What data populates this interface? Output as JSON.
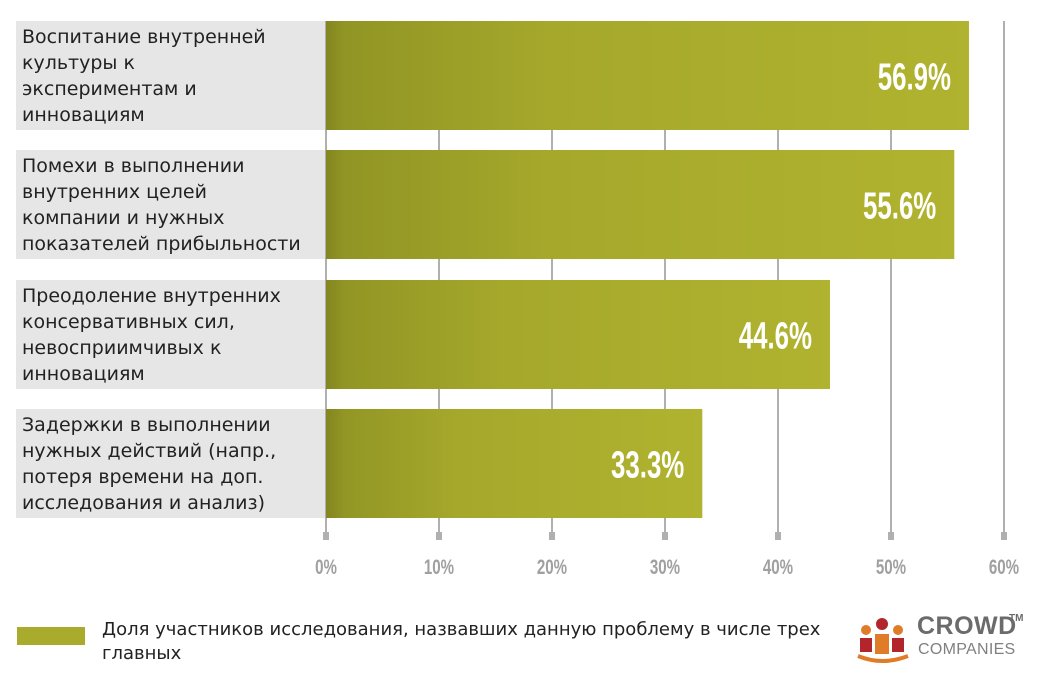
{
  "chart_data": {
    "type": "bar",
    "orientation": "horizontal",
    "categories": [
      "Воспитание внутренней\nкультуры к\nэкспериментам и\nинновациям",
      "Помехи в выполнении\nвнутренних целей\nкомпании и нужных\nпоказателей прибыльности",
      "Преодоление внутренних\nконсервативных сил,\nневосприимчивых к\nинновациям",
      "Задержки в выполнении\nнужных действий (напр.,\nпотеря времени на доп.\nисследования и анализ)"
    ],
    "values": [
      56.9,
      55.6,
      44.6,
      33.3
    ],
    "value_labels": [
      "56.9%",
      "55.6%",
      "44.6%",
      "33.3%"
    ],
    "xlim": [
      0,
      60
    ],
    "xticks": [
      0,
      10,
      20,
      30,
      40,
      50,
      60
    ],
    "xtick_labels": [
      "0%",
      "10%",
      "20%",
      "30%",
      "40%",
      "50%",
      "60%"
    ],
    "grid": true,
    "legend_position": "bottom",
    "series": [
      {
        "name": "Доля участников исследования, назвавших данную проблему в числе трех главных",
        "values": [
          56.9,
          55.6,
          44.6,
          33.3
        ]
      }
    ]
  },
  "colors": {
    "bar": "#a8ab2c",
    "bar_dark": "#8e9222",
    "label_bg": "#e6e6e6",
    "grid": "#b0b0b0",
    "tick_text": "#a0a0a0",
    "logo_orange": "#e07b27",
    "logo_red": "#b2262b"
  },
  "legend": {
    "label": "Доля участников исследования, назвавших данную проблему в числе трех главных"
  },
  "logo": {
    "line1": "CROWD",
    "tm": "TM",
    "line2": "COMPANIES",
    "icon": "crowd-companies-logo-icon"
  }
}
